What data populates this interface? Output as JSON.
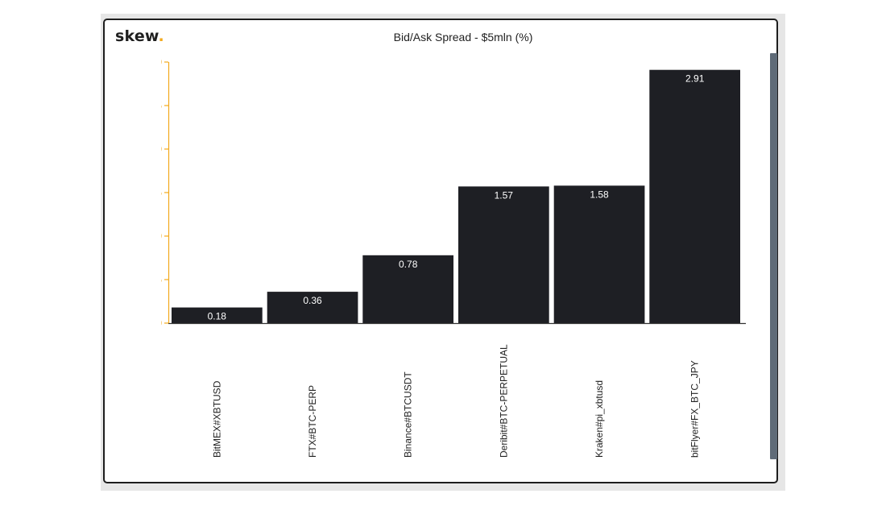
{
  "brand": {
    "name": "skew",
    "dot": "."
  },
  "colors": {
    "bar": "#1e1f24",
    "axis": "#f2a91c",
    "bar_label": "#ffffff",
    "x_tick_label": "#222222"
  },
  "chart_data": {
    "type": "bar",
    "title": "Bid/Ask Spread - $5mln (%)",
    "xlabel": "",
    "ylabel": "",
    "categories": [
      "BitMEX#XBTUSD",
      "FTX#BTC-PERP",
      "Binance#BTCUSDT",
      "Deribit#BTC-PERPETUAL",
      "Kraken#pi_xbtusd",
      "bitFlyer#FX_BTC_JPY"
    ],
    "values": [
      0.18,
      0.36,
      0.78,
      1.57,
      1.58,
      2.91
    ],
    "value_labels": [
      "0.18",
      "0.36",
      "0.78",
      "1.57",
      "1.58",
      "2.91"
    ],
    "ylim": [
      0,
      3.0
    ],
    "yticks": [
      0.0,
      0.5,
      1.0,
      1.5,
      2.0,
      2.5,
      3.0
    ],
    "ytick_labels": [
      "0.0",
      "0.5",
      "1.0",
      "1.5",
      "2.0",
      "2.5",
      "3.0"
    ],
    "grid": false,
    "legend": "none"
  }
}
